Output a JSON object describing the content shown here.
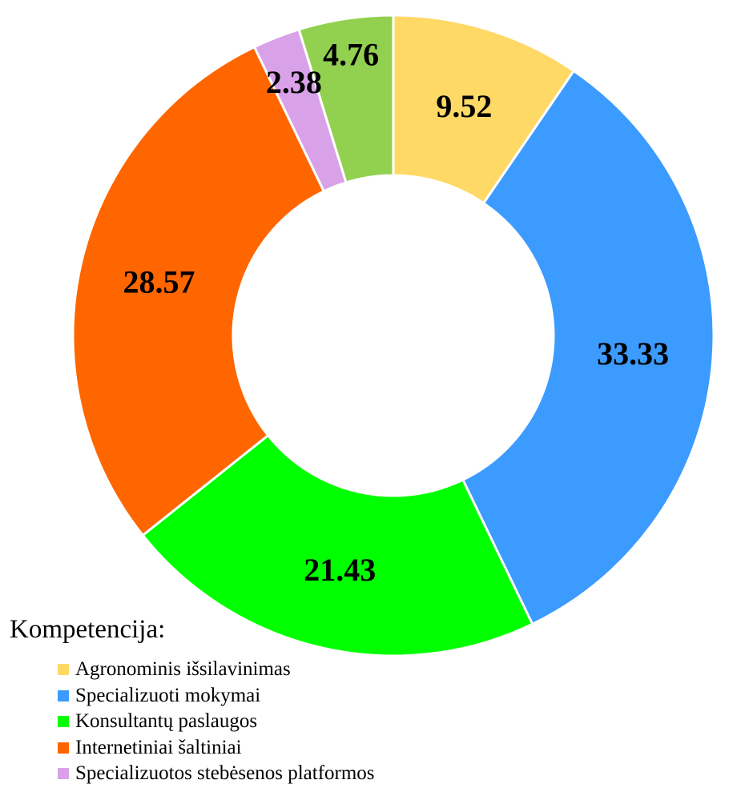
{
  "chart_data": {
    "type": "pie",
    "variant": "donut",
    "title": "",
    "legend_title": "Kompetencija:",
    "legend_placement": "bottom-left",
    "series": [
      {
        "name": "Agronominis išsilavinimas",
        "value": 9.52,
        "label": "9.52",
        "color": "#FFD966"
      },
      {
        "name": "Specializuoti mokymai",
        "value": 33.33,
        "label": "33.33",
        "color": "#3C9BFF"
      },
      {
        "name": "Konsultantų paslaugos",
        "value": 21.43,
        "label": "21.43",
        "color": "#00FF00"
      },
      {
        "name": "Internetiniai šaltiniai",
        "value": 28.57,
        "label": "28.57",
        "color": "#FF6600"
      },
      {
        "name": "Specializuotos stebėsenos platformos",
        "value": 2.38,
        "label": "2.38",
        "color": "#D9A1E8"
      },
      {
        "name": "",
        "value": 4.76,
        "label": "4.76",
        "color": "#92D050"
      }
    ]
  }
}
